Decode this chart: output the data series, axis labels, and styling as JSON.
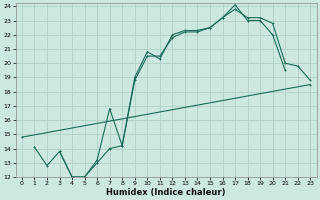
{
  "title": "",
  "xlabel": "Humidex (Indice chaleur)",
  "ylabel": "",
  "bg_color": "#cce8e0",
  "line_color": "#1a6b5a",
  "grid_color": "#b0d0c8",
  "xlim": [
    -0.5,
    23.5
  ],
  "ylim": [
    12,
    24.2
  ],
  "xticks": [
    0,
    1,
    2,
    3,
    4,
    5,
    6,
    7,
    8,
    9,
    10,
    11,
    12,
    13,
    14,
    15,
    16,
    17,
    18,
    19,
    20,
    21,
    22,
    23
  ],
  "yticks": [
    12,
    13,
    14,
    15,
    16,
    17,
    18,
    19,
    20,
    21,
    22,
    23,
    24
  ],
  "line1_x": [
    0,
    23
  ],
  "line1_y": [
    14.8,
    18.5
  ],
  "line2_x": [
    1,
    2,
    3,
    4,
    5,
    6,
    7,
    8,
    9,
    10,
    11,
    12,
    13,
    14,
    15,
    16,
    17,
    18,
    19,
    20,
    21
  ],
  "line2_y": [
    14.1,
    12.8,
    13.8,
    12.0,
    12.0,
    13.0,
    14.0,
    14.2,
    19.0,
    20.8,
    20.3,
    22.0,
    22.3,
    22.3,
    22.5,
    23.2,
    24.1,
    23.0,
    23.0,
    22.0,
    19.5
  ],
  "line3_x": [
    3,
    4,
    5,
    6,
    7,
    8,
    9,
    10,
    11,
    12,
    13,
    14,
    15,
    16,
    17,
    18,
    19,
    20,
    21,
    22,
    23
  ],
  "line3_y": [
    13.8,
    12.0,
    12.0,
    13.2,
    16.8,
    14.2,
    18.8,
    20.5,
    20.5,
    21.8,
    22.2,
    22.2,
    22.5,
    23.2,
    23.8,
    23.2,
    23.2,
    22.8,
    20.0,
    19.8,
    18.8
  ]
}
